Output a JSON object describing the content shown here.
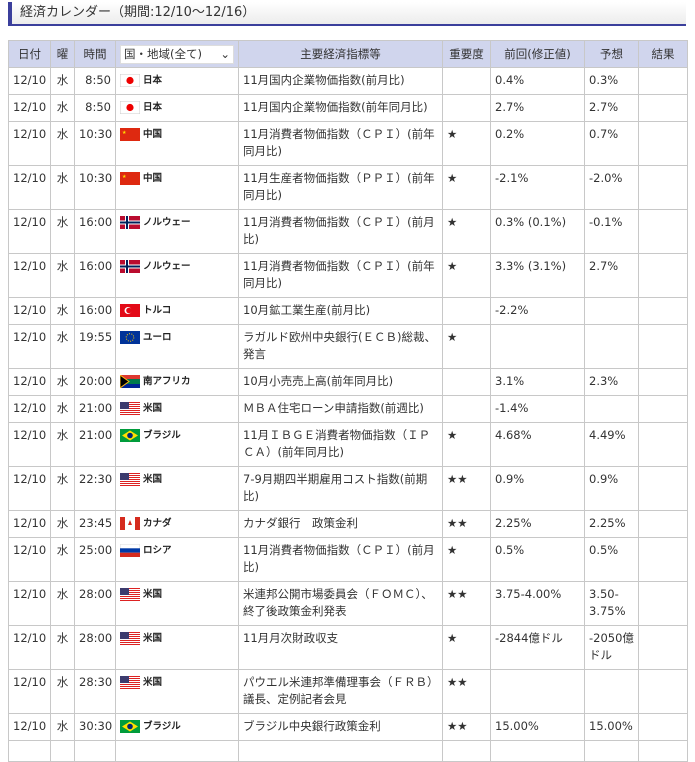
{
  "title": "経済カレンダー（期間:12/10〜12/16）",
  "headers": {
    "date": "日付",
    "day": "曜",
    "time": "時間",
    "country_select": "国・地域(全て)",
    "indicator": "主要経済指標等",
    "importance": "重要度",
    "previous": "前回(修正値)",
    "forecast": "予想",
    "result": "結果"
  },
  "flags": {
    "jp": "japan-flag",
    "cn": "china-flag",
    "no": "norway-flag",
    "tr": "turkey-flag",
    "eu": "eu-flag",
    "za": "south-africa-flag",
    "us": "us-flag",
    "br": "brazil-flag",
    "ca": "canada-flag",
    "ru": "russia-flag"
  },
  "rows": [
    {
      "date": "12/10",
      "day": "水",
      "time": "8:50",
      "flag": "jp",
      "country": "日本",
      "indicator": "11月国内企業物価指数(前月比)",
      "importance": "",
      "previous": "0.4%",
      "forecast": "0.3%",
      "result": "",
      "lines": 1
    },
    {
      "date": "12/10",
      "day": "水",
      "time": "8:50",
      "flag": "jp",
      "country": "日本",
      "indicator": "11月国内企業物価指数(前年同月比)",
      "importance": "",
      "previous": "2.7%",
      "forecast": "2.7%",
      "result": "",
      "lines": 1
    },
    {
      "date": "12/10",
      "day": "水",
      "time": "10:30",
      "flag": "cn",
      "country": "中国",
      "indicator": "11月消費者物価指数（ＣＰＩ）(前年同月比)",
      "importance": "★",
      "previous": "0.2%",
      "forecast": "0.7%",
      "result": "",
      "lines": 2
    },
    {
      "date": "12/10",
      "day": "水",
      "time": "10:30",
      "flag": "cn",
      "country": "中国",
      "indicator": "11月生産者物価指数（ＰＰＩ）(前年同月比)",
      "importance": "★",
      "previous": "-2.1%",
      "forecast": "-2.0%",
      "result": "",
      "lines": 2
    },
    {
      "date": "12/10",
      "day": "水",
      "time": "16:00",
      "flag": "no",
      "country": "ノルウェー",
      "indicator": "11月消費者物価指数（ＣＰＩ）(前月比)",
      "importance": "★",
      "previous": "0.3% (0.1%)",
      "forecast": "-0.1%",
      "result": "",
      "lines": 2
    },
    {
      "date": "12/10",
      "day": "水",
      "time": "16:00",
      "flag": "no",
      "country": "ノルウェー",
      "indicator": "11月消費者物価指数（ＣＰＩ）(前年同月比)",
      "importance": "★",
      "previous": "3.3% (3.1%)",
      "forecast": "2.7%",
      "result": "",
      "lines": 2
    },
    {
      "date": "12/10",
      "day": "水",
      "time": "16:00",
      "flag": "tr",
      "country": "トルコ",
      "indicator": "10月鉱工業生産(前月比)",
      "importance": "",
      "previous": "-2.2%",
      "forecast": "",
      "result": "",
      "lines": 1
    },
    {
      "date": "12/10",
      "day": "水",
      "time": "19:55",
      "flag": "eu",
      "country": "ユーロ",
      "indicator": " ラガルド欧州中央銀行(ＥＣＢ)総裁、発言",
      "importance": "★",
      "previous": "",
      "forecast": "",
      "result": "",
      "lines": 2
    },
    {
      "date": "12/10",
      "day": "水",
      "time": "20:00",
      "flag": "za",
      "country": "南アフリカ",
      "indicator": "10月小売売上高(前年同月比)",
      "importance": "",
      "previous": "3.1%",
      "forecast": "2.3%",
      "result": "",
      "lines": 1
    },
    {
      "date": "12/10",
      "day": "水",
      "time": "21:00",
      "flag": "us",
      "country": "米国",
      "indicator": " ＭＢＡ住宅ローン申請指数(前週比)",
      "importance": "",
      "previous": "-1.4%",
      "forecast": "",
      "result": "",
      "lines": 1
    },
    {
      "date": "12/10",
      "day": "水",
      "time": "21:00",
      "flag": "br",
      "country": "ブラジル",
      "indicator": "11月ＩＢＧＥ消費者物価指数（ＩＰＣＡ）(前年同月比)",
      "importance": "★",
      "previous": "4.68%",
      "forecast": "4.49%",
      "result": "",
      "lines": 2
    },
    {
      "date": "12/10",
      "day": "水",
      "time": "22:30",
      "flag": "us",
      "country": "米国",
      "indicator": "7-9月期四半期雇用コスト指数(前期比)",
      "importance": "★★",
      "previous": "0.9%",
      "forecast": "0.9%",
      "result": "",
      "lines": 2
    },
    {
      "date": "12/10",
      "day": "水",
      "time": "23:45",
      "flag": "ca",
      "country": "カナダ",
      "indicator": " カナダ銀行　政策金利",
      "importance": "★★",
      "previous": "2.25%",
      "forecast": "2.25%",
      "result": "",
      "lines": 1
    },
    {
      "date": "12/10",
      "day": "水",
      "time": "25:00",
      "flag": "ru",
      "country": "ロシア",
      "indicator": "11月消費者物価指数（ＣＰＩ）(前月比)",
      "importance": "★",
      "previous": "0.5%",
      "forecast": "0.5%",
      "result": "",
      "lines": 2
    },
    {
      "date": "12/10",
      "day": "水",
      "time": "28:00",
      "flag": "us",
      "country": "米国",
      "indicator": " 米連邦公開市場委員会（ＦＯＭＣ）、終了後政策金利発表",
      "importance": "★★",
      "previous": "3.75-4.00%",
      "forecast": "3.50-3.75%",
      "result": "",
      "lines": 2
    },
    {
      "date": "12/10",
      "day": "水",
      "time": "28:00",
      "flag": "us",
      "country": "米国",
      "indicator": "11月月次財政収支",
      "importance": "★",
      "previous": "-2844億ドル",
      "forecast": "-2050億ドル",
      "result": "",
      "lines": 2
    },
    {
      "date": "12/10",
      "day": "水",
      "time": "28:30",
      "flag": "us",
      "country": "米国",
      "indicator": " パウエル米連邦準備理事会（ＦＲＢ）議長、定例記者会見",
      "importance": "★★",
      "previous": "",
      "forecast": "",
      "result": "",
      "lines": 2
    },
    {
      "date": "12/10",
      "day": "水",
      "time": "30:30",
      "flag": "br",
      "country": "ブラジル",
      "indicator": " ブラジル中央銀行政策金利",
      "importance": "★★",
      "previous": "15.00%",
      "forecast": "15.00%",
      "result": "",
      "lines": 1
    }
  ]
}
